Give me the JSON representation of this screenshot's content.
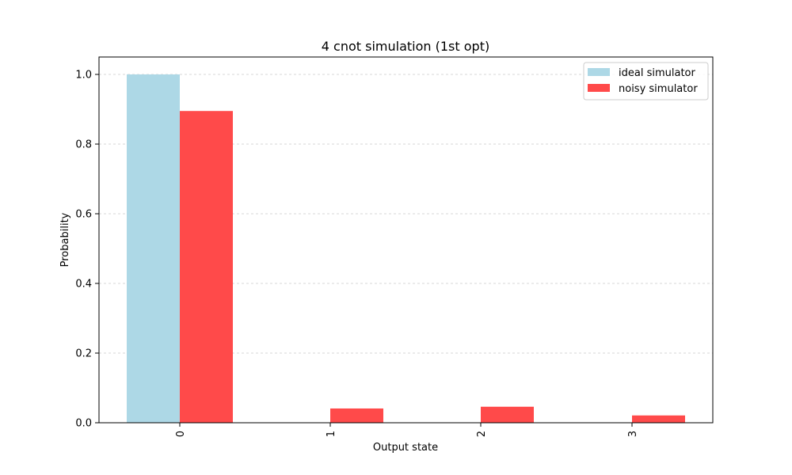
{
  "chart_data": {
    "type": "bar",
    "title": "4 cnot simulation (1st opt)",
    "xlabel": "Output state",
    "ylabel": "Probability",
    "categories": [
      "0",
      "1",
      "2",
      "3"
    ],
    "series": [
      {
        "name": "ideal simulator",
        "color": "#add8e6",
        "values": [
          1.0,
          0.0,
          0.0,
          0.0
        ]
      },
      {
        "name": "noisy simulator",
        "color": "#ff4a4a",
        "values": [
          0.895,
          0.041,
          0.046,
          0.021
        ]
      }
    ],
    "ylim": [
      0,
      1.05
    ],
    "yticks": [
      "0.0",
      "0.2",
      "0.4",
      "0.6",
      "0.8",
      "1.0"
    ],
    "grid": "horizontal dashed",
    "legend": "top-right"
  }
}
